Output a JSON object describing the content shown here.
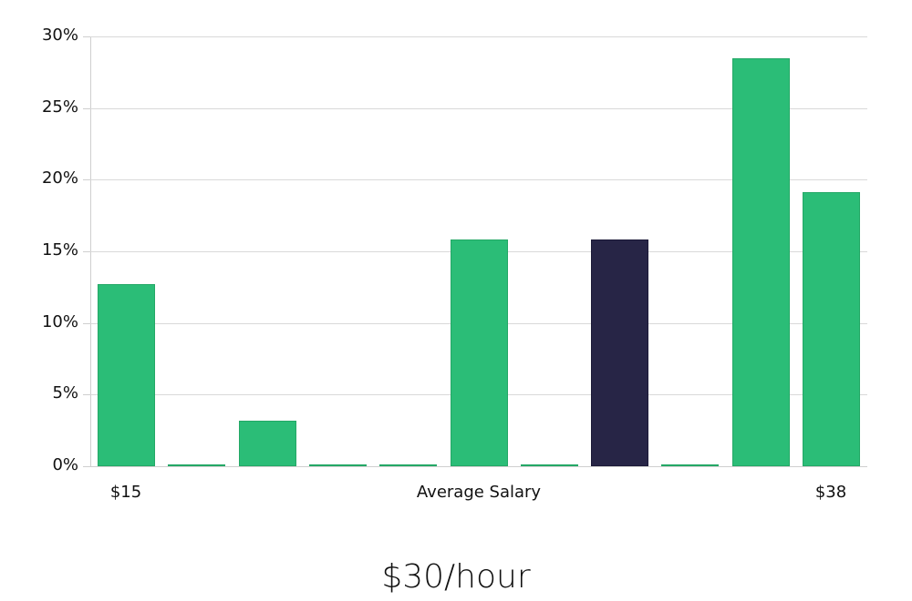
{
  "chart_data": {
    "type": "bar",
    "title": "$30/hour",
    "xlabel": "Average Salary",
    "ylabel": "",
    "x_tick_labels": {
      "left": "$15",
      "center": "Average Salary",
      "right": "$38"
    },
    "categories": [
      "$15",
      "bin2",
      "bin3",
      "bin4",
      "bin5",
      "bin6",
      "bin7",
      "bin8",
      "bin9",
      "bin10",
      "$38"
    ],
    "values": [
      12.7,
      0,
      3.2,
      0,
      0,
      15.8,
      0,
      15.8,
      0,
      28.5,
      19.1
    ],
    "highlight_index": 7,
    "yticks": [
      "0%",
      "5%",
      "10%",
      "15%",
      "20%",
      "25%",
      "30%"
    ],
    "ylim": [
      0,
      30
    ],
    "grid": true,
    "legend": null,
    "colors": {
      "bar": "#2bbd77",
      "bar_border": "#24a866",
      "highlight": "#272546",
      "grid": "#d9d9d9",
      "axis": "#cfcfcf"
    }
  }
}
